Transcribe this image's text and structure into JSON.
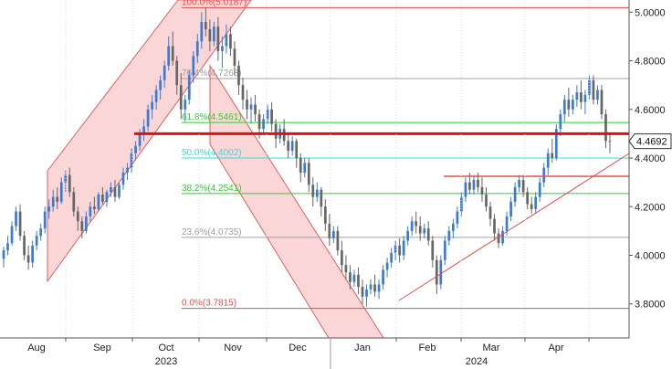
{
  "chart_data": {
    "type": "candlestick",
    "y_axis": {
      "ylim": [
        3.66,
        5.05
      ],
      "ticks": [
        "3.8000",
        "4.0000",
        "4.2000",
        "4.4000",
        "4.6000",
        "4.8000",
        "5.0000"
      ],
      "tick_values": [
        3.8,
        4.0,
        4.2,
        4.4,
        4.6,
        4.8,
        5.0
      ],
      "position": "right"
    },
    "x_axis": {
      "months": [
        "Aug",
        "Sep",
        "Oct",
        "Nov",
        "Dec",
        "Jan",
        "Feb",
        "Mar",
        "Apr"
      ],
      "years": [
        "2023",
        "2024"
      ]
    },
    "last_value": {
      "value": 4.4692,
      "label": "4.4692"
    },
    "reference_level": 4.5,
    "fibonacci": [
      {
        "label": "100.0%(5.0187)",
        "value": 5.0187,
        "color": "#e05050"
      },
      {
        "label": "76.4%(4.7268)",
        "value": 4.7268,
        "color": "#a0a0a0"
      },
      {
        "label": "61.8%(4.5461)",
        "value": 4.5461,
        "color": "#33cc33"
      },
      {
        "label": "50.0%(4.4002)",
        "value": 4.4002,
        "color": "#33dddd"
      },
      {
        "label": "38.2%(4.2541)",
        "value": 4.2541,
        "color": "#33cc33"
      },
      {
        "label": "23.6%(4.0735)",
        "value": 4.0735,
        "color": "#a0a0a0"
      },
      {
        "label": "0.0%(3.7815)",
        "value": 3.7815,
        "color": "#e05050"
      }
    ],
    "candles": [
      [
        3.985,
        4.035,
        3.95,
        4.02
      ],
      [
        4.02,
        4.08,
        4.0,
        4.05
      ],
      [
        4.05,
        4.14,
        4.04,
        4.12
      ],
      [
        4.12,
        4.2,
        4.1,
        4.18
      ],
      [
        4.18,
        4.21,
        4.06,
        4.08
      ],
      [
        4.08,
        4.1,
        3.98,
        4.0
      ],
      [
        4.0,
        4.04,
        3.94,
        3.97
      ],
      [
        3.97,
        4.06,
        3.95,
        4.04
      ],
      [
        4.04,
        4.1,
        4.02,
        4.08
      ],
      [
        4.08,
        4.13,
        4.06,
        4.11
      ],
      [
        4.11,
        4.2,
        4.09,
        4.18
      ],
      [
        4.18,
        4.23,
        4.15,
        4.2
      ],
      [
        4.2,
        4.27,
        4.18,
        4.24
      ],
      [
        4.24,
        4.28,
        4.19,
        4.22
      ],
      [
        4.22,
        4.32,
        4.21,
        4.3
      ],
      [
        4.3,
        4.35,
        4.26,
        4.33
      ],
      [
        4.33,
        4.36,
        4.24,
        4.26
      ],
      [
        4.26,
        4.28,
        4.16,
        4.18
      ],
      [
        4.18,
        4.2,
        4.1,
        4.14
      ],
      [
        4.14,
        4.16,
        4.07,
        4.1
      ],
      [
        4.1,
        4.18,
        4.09,
        4.16
      ],
      [
        4.16,
        4.22,
        4.14,
        4.2
      ],
      [
        4.2,
        4.24,
        4.17,
        4.19
      ],
      [
        4.19,
        4.26,
        4.18,
        4.25
      ],
      [
        4.25,
        4.28,
        4.21,
        4.22
      ],
      [
        4.22,
        4.27,
        4.2,
        4.26
      ],
      [
        4.26,
        4.3,
        4.24,
        4.28
      ],
      [
        4.28,
        4.31,
        4.22,
        4.24
      ],
      [
        4.24,
        4.3,
        4.23,
        4.29
      ],
      [
        4.29,
        4.36,
        4.27,
        4.34
      ],
      [
        4.34,
        4.38,
        4.31,
        4.36
      ],
      [
        4.36,
        4.44,
        4.34,
        4.42
      ],
      [
        4.42,
        4.47,
        4.39,
        4.45
      ],
      [
        4.45,
        4.52,
        4.43,
        4.5
      ],
      [
        4.5,
        4.56,
        4.47,
        4.53
      ],
      [
        4.53,
        4.62,
        4.51,
        4.6
      ],
      [
        4.6,
        4.66,
        4.56,
        4.63
      ],
      [
        4.63,
        4.7,
        4.6,
        4.68
      ],
      [
        4.68,
        4.74,
        4.64,
        4.72
      ],
      [
        4.72,
        4.8,
        4.69,
        4.78
      ],
      [
        4.78,
        4.9,
        4.76,
        4.86
      ],
      [
        4.86,
        4.92,
        4.78,
        4.8
      ],
      [
        4.8,
        4.82,
        4.66,
        4.7
      ],
      [
        4.7,
        4.75,
        4.56,
        4.6
      ],
      [
        4.6,
        4.66,
        4.55,
        4.64
      ],
      [
        4.64,
        4.76,
        4.62,
        4.74
      ],
      [
        4.74,
        4.84,
        4.71,
        4.82
      ],
      [
        4.82,
        4.91,
        4.79,
        4.88
      ],
      [
        4.88,
        5.0,
        4.85,
        4.96
      ],
      [
        4.96,
        5.02,
        4.9,
        4.93
      ],
      [
        4.93,
        4.97,
        4.84,
        4.88
      ],
      [
        4.88,
        4.96,
        4.86,
        4.94
      ],
      [
        4.94,
        4.98,
        4.8,
        4.84
      ],
      [
        4.84,
        4.9,
        4.77,
        4.86
      ],
      [
        4.86,
        4.95,
        4.83,
        4.91
      ],
      [
        4.91,
        4.94,
        4.82,
        4.85
      ],
      [
        4.85,
        4.88,
        4.74,
        4.78
      ],
      [
        4.78,
        4.8,
        4.66,
        4.7
      ],
      [
        4.7,
        4.73,
        4.6,
        4.64
      ],
      [
        4.64,
        4.68,
        4.56,
        4.6
      ],
      [
        4.6,
        4.65,
        4.54,
        4.62
      ],
      [
        4.62,
        4.66,
        4.55,
        4.58
      ],
      [
        4.58,
        4.6,
        4.48,
        4.52
      ],
      [
        4.52,
        4.58,
        4.5,
        4.56
      ],
      [
        4.56,
        4.62,
        4.54,
        4.6
      ],
      [
        4.6,
        4.63,
        4.51,
        4.54
      ],
      [
        4.54,
        4.56,
        4.44,
        4.48
      ],
      [
        4.48,
        4.54,
        4.46,
        4.52
      ],
      [
        4.52,
        4.56,
        4.45,
        4.47
      ],
      [
        4.47,
        4.5,
        4.4,
        4.43
      ],
      [
        4.43,
        4.49,
        4.41,
        4.47
      ],
      [
        4.47,
        4.48,
        4.36,
        4.4
      ],
      [
        4.4,
        4.42,
        4.3,
        4.34
      ],
      [
        4.34,
        4.4,
        4.32,
        4.38
      ],
      [
        4.38,
        4.4,
        4.26,
        4.29
      ],
      [
        4.29,
        4.32,
        4.2,
        4.24
      ],
      [
        4.24,
        4.3,
        4.22,
        4.27
      ],
      [
        4.27,
        4.28,
        4.16,
        4.2
      ],
      [
        4.2,
        4.23,
        4.1,
        4.13
      ],
      [
        4.13,
        4.17,
        4.04,
        4.07
      ],
      [
        4.07,
        4.12,
        4.05,
        4.1
      ],
      [
        4.1,
        4.12,
        4.0,
        4.02
      ],
      [
        4.02,
        4.06,
        3.93,
        3.96
      ],
      [
        3.96,
        4.0,
        3.9,
        3.93
      ],
      [
        3.93,
        3.96,
        3.86,
        3.89
      ],
      [
        3.89,
        3.94,
        3.87,
        3.92
      ],
      [
        3.92,
        3.95,
        3.84,
        3.87
      ],
      [
        3.87,
        3.9,
        3.8,
        3.83
      ],
      [
        3.83,
        3.88,
        3.79,
        3.86
      ],
      [
        3.86,
        3.9,
        3.84,
        3.88
      ],
      [
        3.88,
        3.92,
        3.83,
        3.85
      ],
      [
        3.85,
        3.9,
        3.82,
        3.88
      ],
      [
        3.88,
        3.96,
        3.86,
        3.94
      ],
      [
        3.94,
        3.99,
        3.91,
        3.97
      ],
      [
        3.97,
        4.03,
        3.95,
        4.01
      ],
      [
        4.01,
        4.06,
        3.98,
        4.04
      ],
      [
        4.04,
        4.07,
        3.97,
        4.0
      ],
      [
        4.0,
        4.08,
        3.98,
        4.06
      ],
      [
        4.06,
        4.12,
        4.04,
        4.1
      ],
      [
        4.1,
        4.16,
        4.08,
        4.14
      ],
      [
        4.14,
        4.18,
        4.09,
        4.12
      ],
      [
        4.12,
        4.16,
        4.06,
        4.09
      ],
      [
        4.09,
        4.13,
        4.07,
        4.11
      ],
      [
        4.11,
        4.14,
        4.04,
        4.06
      ],
      [
        4.06,
        4.08,
        3.95,
        3.98
      ],
      [
        3.98,
        4.0,
        3.84,
        3.88
      ],
      [
        3.88,
        4.0,
        3.86,
        3.98
      ],
      [
        3.98,
        4.08,
        3.96,
        4.06
      ],
      [
        4.06,
        4.12,
        4.04,
        4.1
      ],
      [
        4.1,
        4.15,
        4.07,
        4.13
      ],
      [
        4.13,
        4.2,
        4.11,
        4.18
      ],
      [
        4.18,
        4.26,
        4.16,
        4.24
      ],
      [
        4.24,
        4.32,
        4.22,
        4.3
      ],
      [
        4.3,
        4.34,
        4.25,
        4.27
      ],
      [
        4.27,
        4.33,
        4.25,
        4.31
      ],
      [
        4.31,
        4.34,
        4.26,
        4.28
      ],
      [
        4.28,
        4.32,
        4.22,
        4.25
      ],
      [
        4.25,
        4.28,
        4.18,
        4.2
      ],
      [
        4.2,
        4.22,
        4.12,
        4.15
      ],
      [
        4.15,
        4.17,
        4.06,
        4.09
      ],
      [
        4.09,
        4.11,
        4.03,
        4.05
      ],
      [
        4.05,
        4.12,
        4.04,
        4.1
      ],
      [
        4.1,
        4.18,
        4.08,
        4.16
      ],
      [
        4.16,
        4.24,
        4.14,
        4.22
      ],
      [
        4.22,
        4.3,
        4.2,
        4.28
      ],
      [
        4.28,
        4.33,
        4.26,
        4.31
      ],
      [
        4.31,
        4.33,
        4.24,
        4.26
      ],
      [
        4.26,
        4.28,
        4.19,
        4.21
      ],
      [
        4.21,
        4.24,
        4.17,
        4.19
      ],
      [
        4.19,
        4.26,
        4.17,
        4.24
      ],
      [
        4.24,
        4.32,
        4.22,
        4.3
      ],
      [
        4.3,
        4.38,
        4.28,
        4.36
      ],
      [
        4.36,
        4.44,
        4.33,
        4.42
      ],
      [
        4.42,
        4.48,
        4.38,
        4.4
      ],
      [
        4.4,
        4.54,
        4.39,
        4.52
      ],
      [
        4.52,
        4.6,
        4.49,
        4.58
      ],
      [
        4.58,
        4.66,
        4.55,
        4.64
      ],
      [
        4.64,
        4.69,
        4.57,
        4.6
      ],
      [
        4.6,
        4.66,
        4.58,
        4.64
      ],
      [
        4.64,
        4.7,
        4.61,
        4.67
      ],
      [
        4.67,
        4.72,
        4.6,
        4.63
      ],
      [
        4.63,
        4.68,
        4.58,
        4.66
      ],
      [
        4.66,
        4.74,
        4.64,
        4.72
      ],
      [
        4.72,
        4.74,
        4.62,
        4.64
      ],
      [
        4.64,
        4.7,
        4.62,
        4.68
      ],
      [
        4.68,
        4.7,
        4.56,
        4.58
      ],
      [
        4.58,
        4.6,
        4.44,
        4.47
      ],
      [
        4.47,
        4.5,
        4.42,
        4.4692
      ]
    ],
    "fib_label_x": [
      199,
      199,
      199,
      199,
      199,
      199,
      199
    ]
  },
  "labels": {
    "months": [
      "Aug",
      "Sep",
      "Oct",
      "Nov",
      "Dec",
      "Jan",
      "Feb",
      "Mar",
      "Apr"
    ],
    "years": [
      "2023",
      "2024"
    ]
  }
}
